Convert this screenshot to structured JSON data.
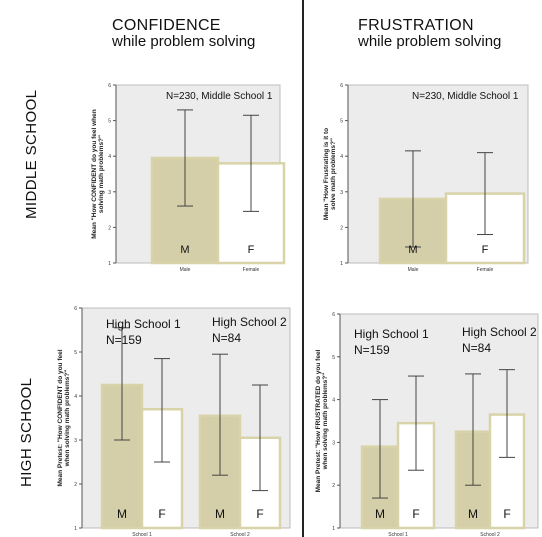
{
  "headers": {
    "confidence": {
      "line1": "CONFIDENCE",
      "line2": "while problem solving"
    },
    "frustration": {
      "line1": "FRUSTRATION",
      "line2": "while problem solving"
    }
  },
  "row_labels": {
    "middle": "MIDDLE SCHOOL",
    "high": "HIGH SCHOOL"
  },
  "colors": {
    "male_bar": "#d4cfa8",
    "female_bar": "#ffffff",
    "bar_border": "#d8d3a8",
    "panel_bg": "#ececec",
    "divider": "#222222"
  },
  "chart_data": [
    {
      "type": "bar",
      "panel": "middle-confidence",
      "categories": [
        "Male",
        "Female"
      ],
      "series": [
        {
          "values": [
            3.95,
            3.8
          ],
          "error_low": [
            2.6,
            2.45
          ],
          "error_high": [
            5.3,
            5.15
          ]
        }
      ],
      "bar_labels": [
        "M",
        "F"
      ],
      "annotations": [
        "N=230,  Middle School 1"
      ],
      "title": "",
      "xlabel": "",
      "ylabel": "Mean \"How CONFIDENT do you feel when solving math problems?\"",
      "yticks": [
        "1",
        "2",
        "3",
        "4",
        "5",
        "6"
      ],
      "ylim": [
        1,
        6
      ],
      "grid": false
    },
    {
      "type": "bar",
      "panel": "middle-frustration",
      "categories": [
        "Male",
        "Female"
      ],
      "series": [
        {
          "values": [
            2.8,
            2.95
          ],
          "error_low": [
            1.45,
            1.8
          ],
          "error_high": [
            4.15,
            4.1
          ]
        }
      ],
      "bar_labels": [
        "M",
        "F"
      ],
      "annotations": [
        "N=230,  Middle School 1"
      ],
      "title": "",
      "xlabel": "",
      "ylabel": "Mean \"How Frustrating is it to solve math problems?\"",
      "yticks": [
        "1",
        "2",
        "3",
        "4",
        "5",
        "6"
      ],
      "ylim": [
        1,
        6
      ],
      "grid": false
    },
    {
      "type": "bar",
      "panel": "high-confidence",
      "categories": [
        "School 1",
        "School 2"
      ],
      "series": [
        {
          "values": [
            4.25,
            3.55
          ],
          "error_low": [
            3.0,
            2.2
          ],
          "error_high": [
            5.55,
            4.95
          ]
        },
        {
          "values": [
            3.7,
            3.05
          ],
          "error_low": [
            2.5,
            1.85
          ],
          "error_high": [
            4.85,
            4.25
          ]
        }
      ],
      "bar_labels": [
        "M",
        "F",
        "M",
        "F"
      ],
      "annotations": [
        "High School 1",
        "N=159",
        "High School 2",
        "N=84"
      ],
      "title": "",
      "xlabel": "",
      "ylabel": "Mean Pretest: \"How CONFIDENT do you feel when solving math problems?\"",
      "yticks": [
        "1",
        "2",
        "3",
        "4",
        "5",
        "6"
      ],
      "ylim": [
        1,
        6
      ],
      "grid": false
    },
    {
      "type": "bar",
      "panel": "high-frustration",
      "categories": [
        "School 1",
        "School 2"
      ],
      "series": [
        {
          "values": [
            2.9,
            3.25
          ],
          "error_low": [
            1.7,
            2.0
          ],
          "error_high": [
            4.0,
            4.6
          ]
        },
        {
          "values": [
            3.45,
            3.65
          ],
          "error_low": [
            2.35,
            2.65
          ],
          "error_high": [
            4.55,
            4.7
          ]
        }
      ],
      "bar_labels": [
        "M",
        "F",
        "M",
        "F"
      ],
      "annotations": [
        "High School 1",
        "N=159",
        "High School 2",
        "N=84"
      ],
      "title": "",
      "xlabel": "",
      "ylabel": "Mean Pretest: \"How FRUSTRATED do you feel when solving math problems?\"",
      "yticks": [
        "1",
        "2",
        "3",
        "4",
        "5",
        "6"
      ],
      "ylim": [
        1,
        6
      ],
      "grid": false
    }
  ]
}
